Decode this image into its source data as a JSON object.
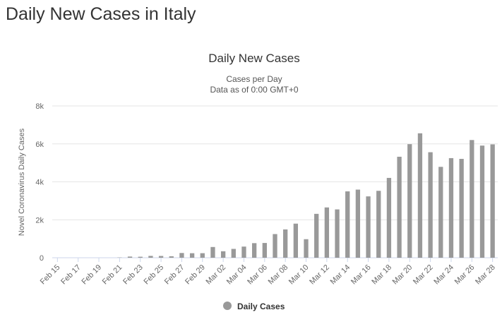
{
  "page": {
    "title": "Daily New Cases in Italy"
  },
  "chart_data": {
    "type": "bar",
    "title": "Daily New Cases",
    "subtitle": [
      "Cases per Day",
      "Data as of 0:00 GMT+0"
    ],
    "xlabel": "",
    "ylabel": "Novel Coronavirus Daily Cases",
    "ylim": [
      0,
      8000
    ],
    "y_ticks": [
      0,
      2000,
      4000,
      6000,
      8000
    ],
    "y_tick_labels": [
      "0",
      "2k",
      "4k",
      "6k",
      "8k"
    ],
    "grid": true,
    "legend_position": "bottom-center",
    "categories": [
      "Feb 15",
      "Feb 16",
      "Feb 17",
      "Feb 18",
      "Feb 19",
      "Feb 20",
      "Feb 21",
      "Feb 22",
      "Feb 23",
      "Feb 24",
      "Feb 25",
      "Feb 26",
      "Feb 27",
      "Feb 28",
      "Feb 29",
      "Mar 01",
      "Mar 02",
      "Mar 03",
      "Mar 04",
      "Mar 05",
      "Mar 06",
      "Mar 07",
      "Mar 08",
      "Mar 09",
      "Mar 10",
      "Mar 11",
      "Mar 12",
      "Mar 13",
      "Mar 14",
      "Mar 15",
      "Mar 16",
      "Mar 17",
      "Mar 18",
      "Mar 19",
      "Mar 20",
      "Mar 21",
      "Mar 22",
      "Mar 23",
      "Mar 24",
      "Mar 25",
      "Mar 26",
      "Mar 27",
      "Mar 28"
    ],
    "x_tick_labels": [
      "Feb 15",
      "Feb 17",
      "Feb 19",
      "Feb 21",
      "Feb 23",
      "Feb 25",
      "Feb 27",
      "Feb 29",
      "Mar 02",
      "Mar 04",
      "Mar 06",
      "Mar 08",
      "Mar 10",
      "Mar 12",
      "Mar 14",
      "Mar 16",
      "Mar 18",
      "Mar 20",
      "Mar 22",
      "Mar 24",
      "Mar 26",
      "Mar 28"
    ],
    "series": [
      {
        "name": "Daily Cases",
        "color": "#999999",
        "values": [
          0,
          0,
          0,
          0,
          0,
          0,
          14,
          62,
          53,
          97,
          93,
          78,
          250,
          238,
          240,
          566,
          342,
          466,
          587,
          769,
          778,
          1247,
          1492,
          1797,
          977,
          2313,
          2651,
          2547,
          3497,
          3590,
          3233,
          3526,
          4207,
          5322,
          5986,
          6557,
          5560,
          4789,
          5249,
          5210,
          6203,
          5909,
          5974
        ]
      }
    ]
  }
}
